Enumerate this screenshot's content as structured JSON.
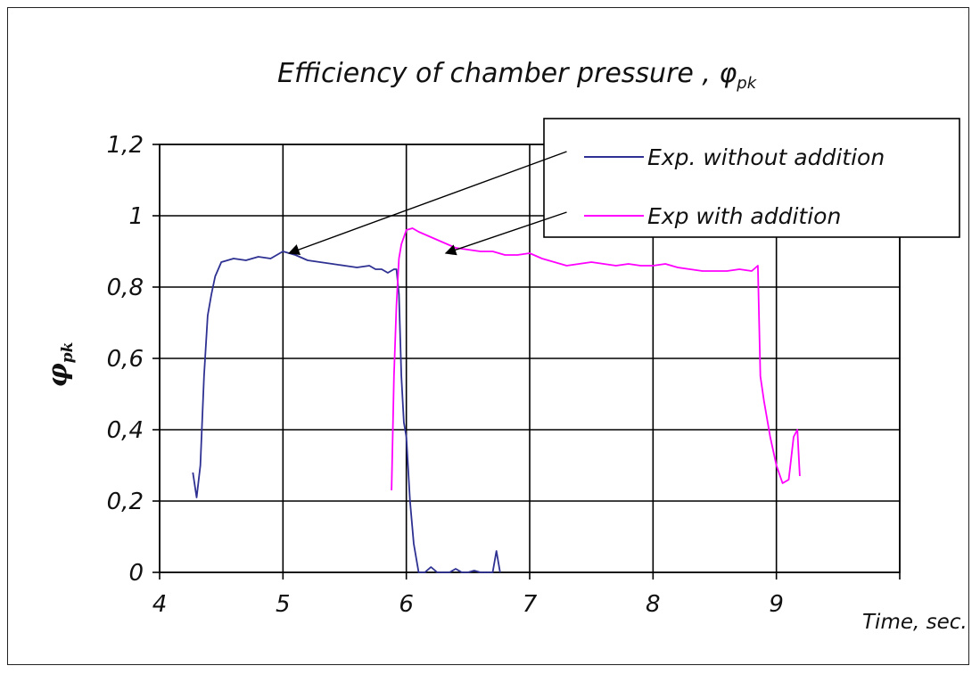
{
  "chart_data": {
    "type": "line",
    "title": "Efficiency of chamber pressure , φ",
    "title_subscript": "pk",
    "ylabel": "φ",
    "ylabel_subscript": "pk",
    "xlabel": "Time, sec.",
    "xlim": [
      4,
      10
    ],
    "ylim": [
      0,
      1.2
    ],
    "x_ticks": [
      4,
      5,
      6,
      7,
      8,
      9
    ],
    "x_tick_labels": [
      "4",
      "5",
      "6",
      "7",
      "8",
      "9"
    ],
    "y_ticks": [
      0,
      0.2,
      0.4,
      0.6,
      0.8,
      1.0,
      1.2
    ],
    "y_tick_labels": [
      "0",
      "0,2",
      "0,4",
      "0,6",
      "0,8",
      "1",
      "1,2"
    ],
    "grid": true,
    "legend_position": "top-right",
    "series": [
      {
        "name": "Exp. without addition",
        "color": "#2e3192",
        "x": [
          4.27,
          4.3,
          4.33,
          4.36,
          4.39,
          4.42,
          4.45,
          4.5,
          4.55,
          4.6,
          4.7,
          4.8,
          4.9,
          5.0,
          5.1,
          5.2,
          5.3,
          5.4,
          5.5,
          5.6,
          5.7,
          5.75,
          5.8,
          5.85,
          5.9,
          5.92,
          5.94,
          5.96,
          5.98,
          6.0,
          6.03,
          6.06,
          6.1,
          6.15,
          6.2,
          6.25,
          6.3,
          6.35,
          6.4,
          6.45,
          6.5,
          6.55,
          6.6,
          6.65,
          6.7,
          6.73,
          6.76
        ],
        "y": [
          0.28,
          0.21,
          0.3,
          0.55,
          0.72,
          0.78,
          0.83,
          0.87,
          0.875,
          0.88,
          0.875,
          0.885,
          0.88,
          0.9,
          0.89,
          0.875,
          0.87,
          0.865,
          0.86,
          0.855,
          0.86,
          0.85,
          0.85,
          0.84,
          0.85,
          0.85,
          0.78,
          0.55,
          0.42,
          0.38,
          0.2,
          0.08,
          0.0,
          0.0,
          0.015,
          0.0,
          0.0,
          0.0,
          0.01,
          0.0,
          0.0,
          0.005,
          0.0,
          0.0,
          0.0,
          0.06,
          0.0
        ]
      },
      {
        "name": "Exp with addition",
        "color": "#ff00ff",
        "x": [
          5.88,
          5.9,
          5.92,
          5.94,
          5.96,
          6.0,
          6.05,
          6.1,
          6.2,
          6.3,
          6.4,
          6.5,
          6.6,
          6.7,
          6.8,
          6.9,
          7.0,
          7.1,
          7.2,
          7.3,
          7.4,
          7.5,
          7.6,
          7.7,
          7.8,
          7.9,
          8.0,
          8.1,
          8.2,
          8.3,
          8.4,
          8.5,
          8.6,
          8.7,
          8.8,
          8.85,
          8.87,
          8.9,
          8.95,
          9.0,
          9.05,
          9.1,
          9.14,
          9.17,
          9.19
        ],
        "y": [
          0.23,
          0.55,
          0.75,
          0.88,
          0.92,
          0.96,
          0.965,
          0.955,
          0.94,
          0.925,
          0.91,
          0.905,
          0.9,
          0.9,
          0.89,
          0.89,
          0.895,
          0.88,
          0.87,
          0.86,
          0.865,
          0.87,
          0.865,
          0.86,
          0.865,
          0.86,
          0.86,
          0.865,
          0.855,
          0.85,
          0.845,
          0.845,
          0.845,
          0.85,
          0.845,
          0.86,
          0.55,
          0.48,
          0.38,
          0.3,
          0.25,
          0.26,
          0.38,
          0.4,
          0.27
        ]
      }
    ],
    "annotations": [
      {
        "from_x": 7.3,
        "from_y": 1.18,
        "to_x": 5.05,
        "to_y": 0.895
      },
      {
        "from_x": 7.3,
        "from_y": 1.01,
        "to_x": 6.32,
        "to_y": 0.895
      }
    ]
  }
}
